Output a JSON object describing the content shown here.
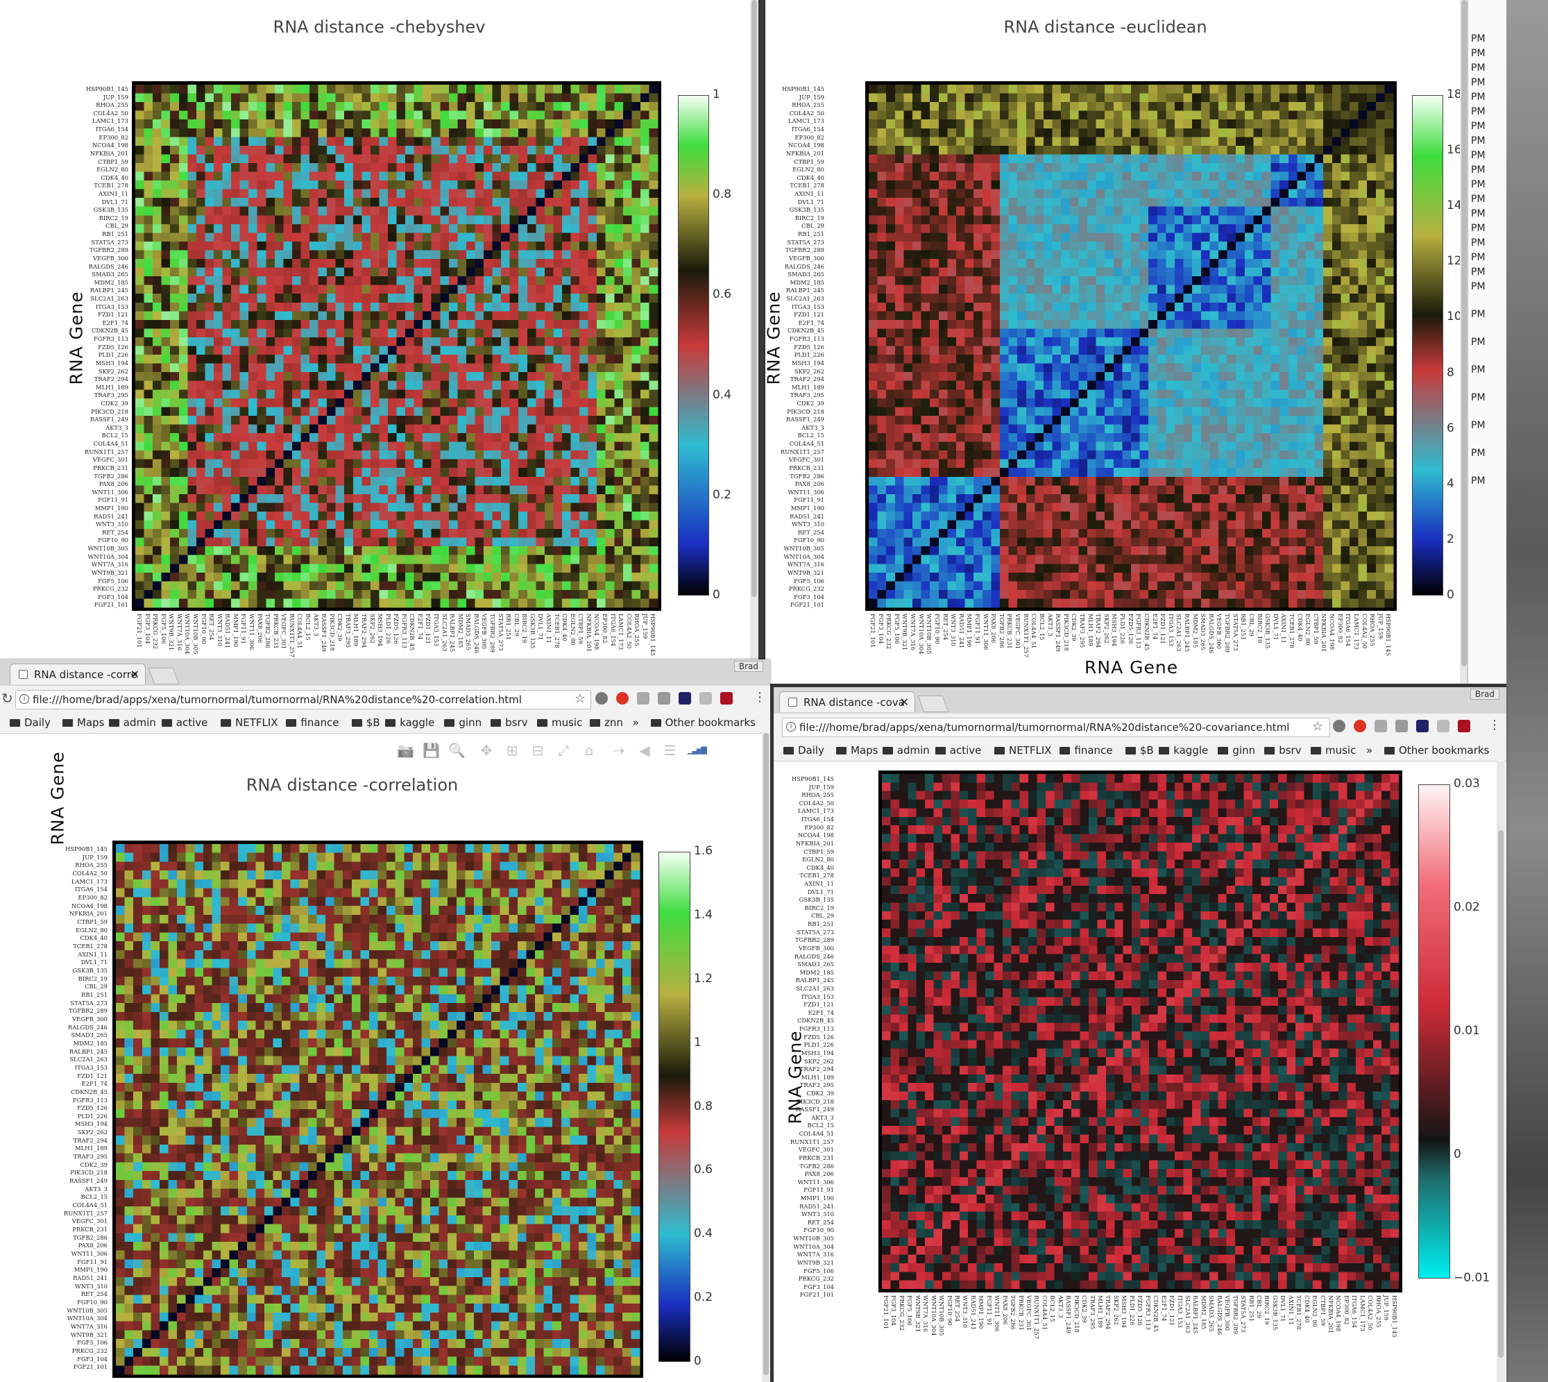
{
  "genes_y": [
    "HSP90B1_145",
    "JUP_159",
    "RHOA_255",
    "COL4A2_50",
    "LAMC1_173",
    "ITGA6_154",
    "EP300_82",
    "NCOA4_198",
    "NFKBIA_201",
    "CTBP1_59",
    "EGLN2_80",
    "CDK4_40",
    "TCEB1_278",
    "AXIN1_11",
    "DVL1_71",
    "GSK3B_135",
    "BIRC2_19",
    "CBL_29",
    "RB1_251",
    "STAT5A_273",
    "TGFBR2_289",
    "VEGFB_300",
    "RALGDS_246",
    "SMAD3_265",
    "MDM2_185",
    "RALBP1_245",
    "SLC2A1_263",
    "ITGA3_153",
    "FZD1_121",
    "E2F1_74",
    "CDKN2B_45",
    "FGFR3_113",
    "FZD5_126",
    "PLD1_226",
    "MSH3_194",
    "SKP2_262",
    "TRAF2_294",
    "MLH1_189",
    "TRAF3_295",
    "CDK2_39",
    "PIK3CD_218",
    "RASSF1_249",
    "AKT3_3",
    "BCL2_15",
    "COL4A4_51",
    "RUNX1T1_257",
    "VEGFC_301",
    "PRKCB_231",
    "TGFB2_286",
    "PAX8_206",
    "WNT11_306",
    "FGF11_91",
    "MMP1_190",
    "RAD51_241",
    "WNT3_310",
    "RET_254",
    "FGF10_90",
    "WNT10B_305",
    "WNT10A_304",
    "WNT7A_316",
    "WNT9B_321",
    "FGF5_106",
    "PRKCG_232",
    "FGF3_104",
    "FGF21_101"
  ],
  "genes_x": [
    "FGF21_101",
    "FGF3_104",
    "PRKCG_232",
    "FGF5_106",
    "WNT9B_321",
    "WNT7A_316",
    "WNT10A_304",
    "WNT10B_305",
    "FGF10_90",
    "RET_254",
    "WNT3_310",
    "RAD51_241",
    "MMP1_190",
    "FGF11_91",
    "WNT11_306",
    "PAX8_206",
    "TGFB2_286",
    "PRKCB_231",
    "VEGFC_301",
    "RUNX1T1_257",
    "COL4A4_51",
    "BCL2_15",
    "AKT3_3",
    "RASSF1_249",
    "PIK3CD_218",
    "CDK2_39",
    "TRAF3_295",
    "MLH1_189",
    "TRAF2_294",
    "SKP2_262",
    "MSH3_194",
    "PLD1_226",
    "FZD5_126",
    "FGFR3_113",
    "CDKN2B_45",
    "E2F1_74",
    "FZD1_121",
    "ITGA3_153",
    "SLC2A1_263",
    "RALBP1_245",
    "MDM2_185",
    "SMAD3_265",
    "RALGDS_246",
    "VEGFB_300",
    "TGFBR2_289",
    "STAT5A_273",
    "RB1_251",
    "CBL_29",
    "BIRC2_19",
    "GSK3B_135",
    "DVL1_71",
    "AXIN1_11",
    "TCEB1_278",
    "CDK4_40",
    "EGLN2_80",
    "CTBP1_59",
    "NFKBIA_201",
    "NCOA4_198",
    "EP300_82",
    "ITGA6_154",
    "LAMC1_173",
    "COL4A2_50",
    "RHOA_255",
    "JUP_159",
    "HSP90B1_145"
  ],
  "chebyshev": {
    "title": "RNA distance -chebyshev",
    "ylabel": "RNA  Gene",
    "colorbar_ticks": [
      "1",
      "0.8",
      "0.6",
      "0.4",
      "0.2",
      "0"
    ],
    "scrollbar": "scrollbar"
  },
  "euclidean": {
    "title": "RNA distance -euclidean",
    "ylabel": "RNA  Gene",
    "xlabel": "RNA  Gene",
    "colorbar_ticks": [
      "18",
      "16",
      "14",
      "12",
      "10",
      "8",
      "6",
      "4",
      "2",
      "0"
    ],
    "side_times": [
      "PM",
      "PM",
      "PM",
      "PM",
      "PM",
      "PM",
      "PM",
      "PM",
      "PM",
      "PM",
      "PM",
      "PM",
      "PM",
      "PM",
      "PM",
      "PM",
      "PM",
      "PM",
      "PM",
      "PM",
      "PM",
      "PM",
      "PM",
      "PM",
      "PM"
    ]
  },
  "correlation_window": {
    "tab_title": "RNA distance -corre",
    "user": "Brad",
    "url": "file:///home/brad/apps/xena/tumornormal/tumornormal/RNA%20distance%20-correlation.html",
    "bookmarks": [
      "Daily",
      "Maps",
      "admin",
      "active",
      "NETFLIX",
      "finance",
      "$B",
      "kaggle",
      "ginn",
      "bsrv",
      "music",
      "znn"
    ],
    "overflow": "»",
    "other_bookmarks": "Other bookmarks",
    "title": "RNA distance -correlation",
    "ylabel": "RNA  Gene",
    "colorbar_ticks": [
      "1.6",
      "1.4",
      "1.2",
      "1",
      "0.8",
      "0.6",
      "0.4",
      "0.2",
      "0"
    ],
    "modebar": [
      "camera-icon",
      "save-icon",
      "zoom-icon",
      "pan-icon",
      "zoom-in-icon",
      "zoom-out-icon",
      "autoscale-icon",
      "home-icon",
      "spike-icon",
      "hover-closest-icon",
      "hover-compare-icon",
      "plotly-logo-icon"
    ]
  },
  "covariance_window": {
    "tab_title": "RNA distance -cova",
    "user": "Brad",
    "url": "file:///home/brad/apps/xena/tumornormal/tumornormal/RNA%20distance%20-covariance.html",
    "bookmarks": [
      "Daily",
      "Maps",
      "admin",
      "active",
      "NETFLIX",
      "finance",
      "$B",
      "kaggle",
      "ginn",
      "bsrv",
      "music"
    ],
    "overflow": "»",
    "other_bookmarks": "Other bookmarks",
    "ylabel": "RNA  Gene",
    "colorbar_ticks": [
      "0.03",
      "0.02",
      "0.01",
      "0",
      "−0.01"
    ]
  },
  "colors": {
    "chrome_bg": "#f2f2f2",
    "modebar_icon": "#8aa0b8",
    "frame": "#000000"
  }
}
